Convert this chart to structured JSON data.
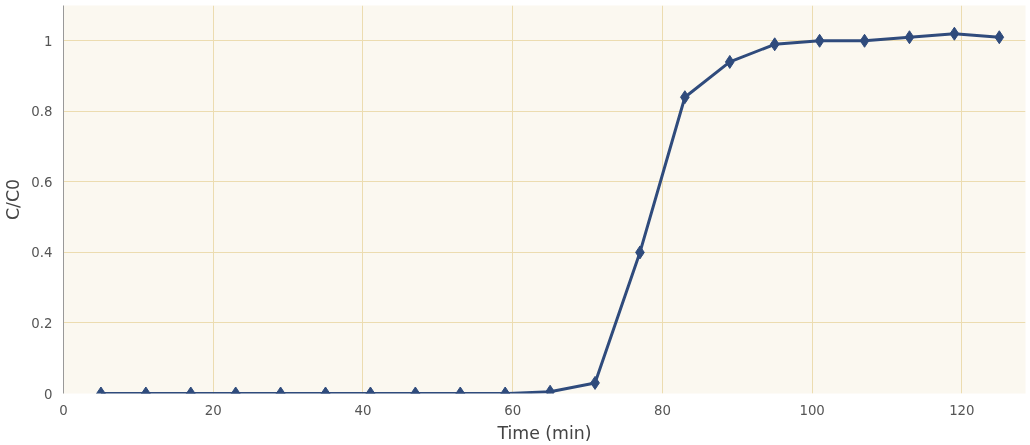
{
  "chart_data": {
    "type": "line",
    "xlabel": "Time (min)",
    "ylabel": "C/C0",
    "x": [
      5,
      11,
      17,
      23,
      29,
      35,
      41,
      47,
      53,
      59,
      65,
      71,
      77,
      83,
      89,
      95,
      101,
      107,
      113,
      119,
      125
    ],
    "series": [
      {
        "color": "#2f4b7c",
        "values": [
          0,
          0,
          0,
          0,
          0,
          0,
          0,
          0,
          0,
          0,
          0.005,
          0.03,
          0.4,
          0.84,
          0.94,
          0.99,
          1.0,
          1.0,
          1.01,
          1.02,
          1.01
        ]
      }
    ],
    "xlim": [
      0,
      128.5
    ],
    "ylim": [
      0,
      1.1
    ],
    "xticks": [
      0,
      20,
      40,
      60,
      80,
      100,
      120
    ],
    "yticks": [
      0,
      0.2,
      0.4,
      0.6,
      0.8,
      1
    ],
    "grid": true,
    "marker": "diamond",
    "line_style": "solid"
  }
}
